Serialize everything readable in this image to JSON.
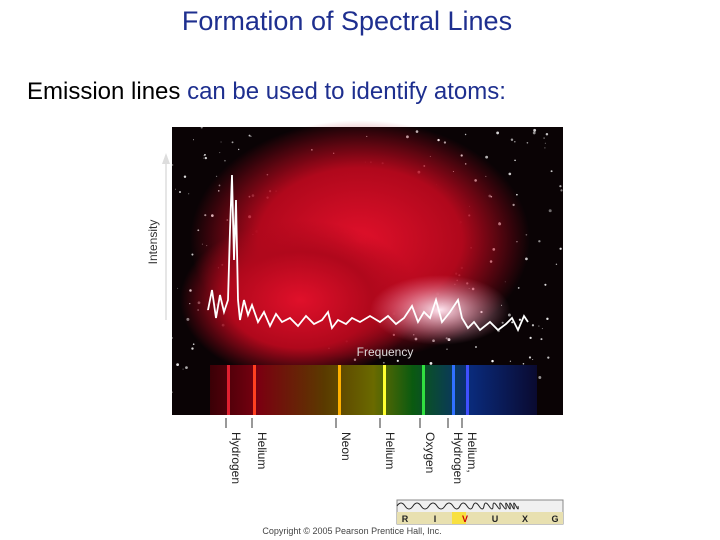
{
  "slide": {
    "title": "Formation of Spectral Lines",
    "subtitle": {
      "emphasis": "Emission lines",
      "rest": "can be used to identify atoms:"
    }
  },
  "figure": {
    "y_axis_label": "Intensity",
    "x_axis_label": "Frequency",
    "line_labels": [
      "Hydrogen",
      "Helium",
      "Neon",
      "Helium",
      "Oxygen",
      "Hydrogen",
      "Helium,"
    ],
    "band_labels": [
      "R",
      "I",
      "V",
      "U",
      "X",
      "G"
    ],
    "credit": "Copyright © 2005 Pearson Prentice Hall, Inc."
  }
}
